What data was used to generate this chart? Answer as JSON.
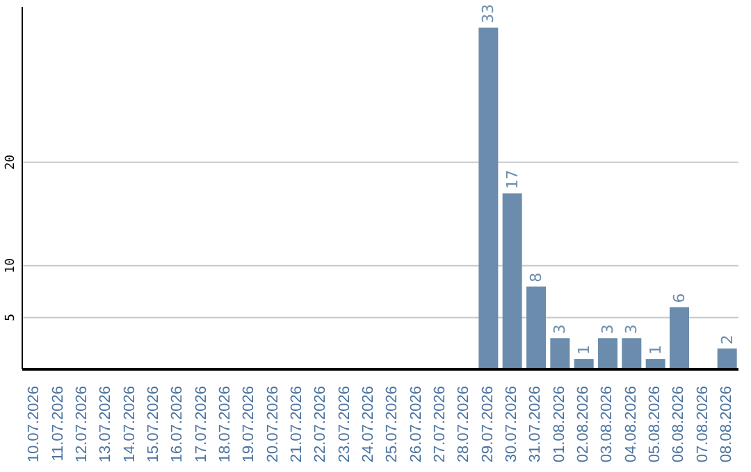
{
  "chart_data": {
    "type": "bar",
    "categories": [
      "10.07.2026",
      "11.07.2026",
      "12.07.2026",
      "13.07.2026",
      "14.07.2026",
      "15.07.2026",
      "16.07.2026",
      "17.07.2026",
      "18.07.2026",
      "19.07.2026",
      "20.07.2026",
      "21.07.2026",
      "22.07.2026",
      "23.07.2026",
      "24.07.2026",
      "25.07.2026",
      "26.07.2026",
      "27.07.2026",
      "28.07.2026",
      "29.07.2026",
      "30.07.2026",
      "31.07.2026",
      "01.08.2026",
      "02.08.2026",
      "03.08.2026",
      "04.08.2026",
      "05.08.2026",
      "06.08.2026",
      "07.08.2026",
      "08.08.2026"
    ],
    "values": [
      0,
      0,
      0,
      0,
      0,
      0,
      0,
      0,
      0,
      0,
      0,
      0,
      0,
      0,
      0,
      0,
      0,
      0,
      0,
      33,
      17,
      8,
      3,
      1,
      3,
      3,
      1,
      6,
      0,
      2
    ],
    "value_labels": [
      null,
      null,
      null,
      null,
      null,
      null,
      null,
      null,
      null,
      null,
      null,
      null,
      null,
      null,
      null,
      null,
      null,
      null,
      null,
      "33",
      "17",
      "8",
      "3",
      "1",
      "3",
      "3",
      "1",
      "6",
      null,
      "2"
    ],
    "color": "#6b8cac",
    "ylim": [
      0,
      35
    ],
    "yticks": [
      5,
      10,
      20
    ],
    "grid": "y"
  }
}
